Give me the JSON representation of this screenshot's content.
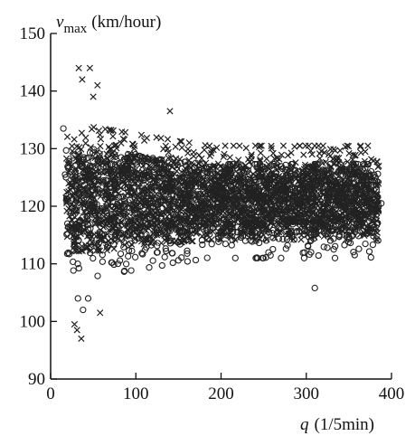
{
  "chart_data": {
    "type": "scatter",
    "xlabel_symbol": "q",
    "xlabel_unit": "(1/5min)",
    "ylabel_symbol": "v",
    "ylabel_subscript": "max",
    "ylabel_unit": "(km/hour)",
    "xlim": [
      0,
      400
    ],
    "ylim": [
      90,
      150
    ],
    "x_ticks": [
      0,
      100,
      200,
      300,
      400
    ],
    "y_ticks": [
      90,
      100,
      110,
      120,
      130,
      140,
      150
    ],
    "grid": false,
    "legend": "none",
    "marker_styles": [
      "circle",
      "cross"
    ],
    "x_range_of_points": [
      18,
      385
    ],
    "y_band_center": 121,
    "y_band_half_width_low_q": 12,
    "y_band_half_width_high_q": 8,
    "sampling": {
      "count": 3600,
      "seed": 7
    },
    "outliers": [
      {
        "x": 33,
        "y": 144,
        "marker": "cross"
      },
      {
        "x": 46,
        "y": 144,
        "marker": "cross"
      },
      {
        "x": 37,
        "y": 142,
        "marker": "cross"
      },
      {
        "x": 55,
        "y": 141,
        "marker": "cross"
      },
      {
        "x": 50,
        "y": 139,
        "marker": "cross"
      },
      {
        "x": 140,
        "y": 136.5,
        "marker": "cross"
      },
      {
        "x": 28,
        "y": 99.5,
        "marker": "cross"
      },
      {
        "x": 31,
        "y": 98.5,
        "marker": "cross"
      },
      {
        "x": 36,
        "y": 97,
        "marker": "cross"
      },
      {
        "x": 58,
        "y": 101.5,
        "marker": "cross"
      },
      {
        "x": 385,
        "y": 127,
        "marker": "cross"
      },
      {
        "x": 38,
        "y": 102,
        "marker": "circle"
      },
      {
        "x": 44,
        "y": 104,
        "marker": "circle"
      },
      {
        "x": 32,
        "y": 104,
        "marker": "circle"
      },
      {
        "x": 310,
        "y": 105.8,
        "marker": "circle"
      },
      {
        "x": 388,
        "y": 120.5,
        "marker": "circle"
      },
      {
        "x": 15,
        "y": 133.5,
        "marker": "circle"
      },
      {
        "x": 17,
        "y": 125.5,
        "marker": "circle"
      }
    ]
  }
}
